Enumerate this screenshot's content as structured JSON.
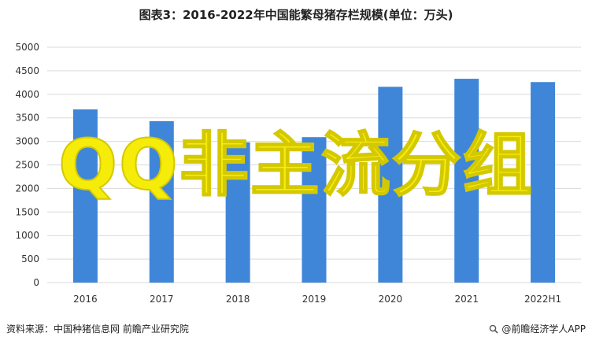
{
  "chart_data": {
    "type": "bar",
    "title": "图表3：2016-2022年中国能繁母猪存栏规模(单位：万头)",
    "categories": [
      "2016",
      "2017",
      "2018",
      "2019",
      "2020",
      "2021",
      "2022H1"
    ],
    "values": [
      3680,
      3430,
      2980,
      3090,
      4160,
      4330,
      4260
    ],
    "ylim": [
      0,
      5000
    ],
    "yticks": [
      0,
      500,
      1000,
      1500,
      2000,
      2500,
      3000,
      3500,
      4000,
      4500,
      5000
    ],
    "bar_color": "#3f86d8",
    "grid": true,
    "legend": "none"
  },
  "footer": {
    "source": "资料来源：中国种猪信息网 前瞻产业研究院",
    "brand": "@前瞻经济学人APP"
  },
  "overlay": {
    "text": "QQ非主流分组",
    "color": "#f5ec0a"
  }
}
